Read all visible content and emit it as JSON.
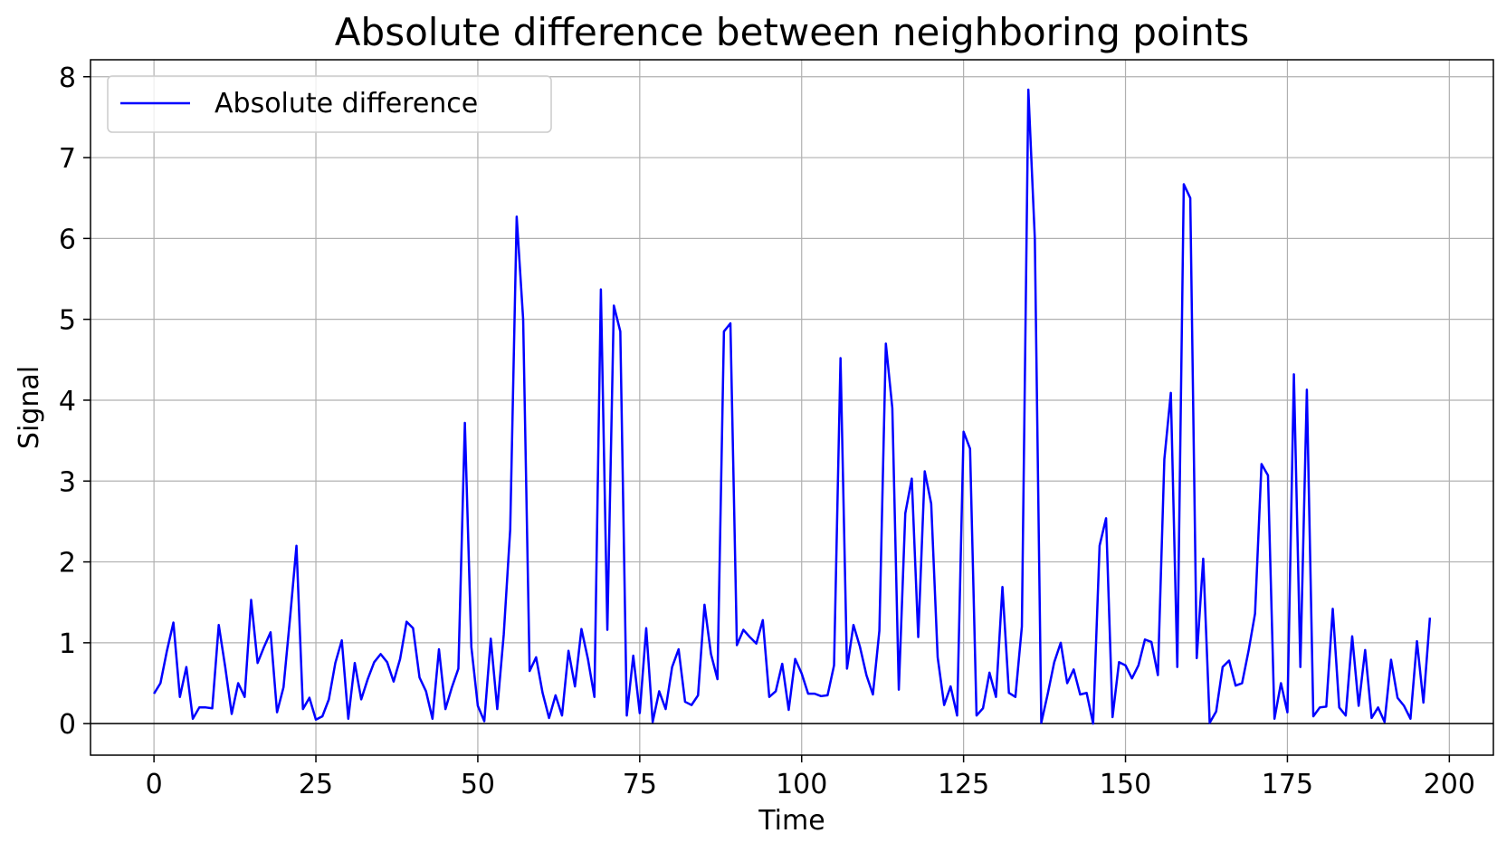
{
  "chart_data": {
    "type": "line",
    "title": "Absolute difference between neighboring points",
    "xlabel": "Time",
    "ylabel": "Signal",
    "xlim": [
      -9.8,
      206.8
    ],
    "ylim": [
      -0.39,
      8.21
    ],
    "xticks": [
      0,
      25,
      50,
      75,
      100,
      125,
      150,
      175,
      200
    ],
    "yticks": [
      0,
      1,
      2,
      3,
      4,
      5,
      6,
      7,
      8
    ],
    "grid": true,
    "legend_position": "top-left",
    "series": [
      {
        "name": "Absolute difference",
        "color": "#0000ff",
        "x_start": 0,
        "x_step": 1,
        "values": [
          0.37,
          0.5,
          0.9,
          1.25,
          0.33,
          0.7,
          0.06,
          0.2,
          0.2,
          0.19,
          1.22,
          0.7,
          0.12,
          0.5,
          0.33,
          1.53,
          0.75,
          0.95,
          1.13,
          0.14,
          0.45,
          1.3,
          2.2,
          0.18,
          0.32,
          0.05,
          0.09,
          0.3,
          0.75,
          1.03,
          0.06,
          0.75,
          0.3,
          0.55,
          0.76,
          0.86,
          0.76,
          0.52,
          0.8,
          1.26,
          1.18,
          0.57,
          0.4,
          0.06,
          0.92,
          0.18,
          0.45,
          0.68,
          3.72,
          0.95,
          0.22,
          0.03,
          1.05,
          0.18,
          1.1,
          2.4,
          6.27,
          5.0,
          0.65,
          0.82,
          0.38,
          0.07,
          0.35,
          0.1,
          0.9,
          0.46,
          1.17,
          0.8,
          0.33,
          5.37,
          1.16,
          5.17,
          4.85,
          0.1,
          0.84,
          0.13,
          1.18,
          0.02,
          0.4,
          0.18,
          0.7,
          0.92,
          0.27,
          0.23,
          0.35,
          1.47,
          0.86,
          0.55,
          4.85,
          4.95,
          0.97,
          1.16,
          1.07,
          0.99,
          1.28,
          0.33,
          0.4,
          0.74,
          0.17,
          0.8,
          0.62,
          0.37,
          0.37,
          0.34,
          0.35,
          0.72,
          4.52,
          0.68,
          1.22,
          0.95,
          0.6,
          0.36,
          1.15,
          4.7,
          3.9,
          0.42,
          2.6,
          3.03,
          1.07,
          3.12,
          2.72,
          0.82,
          0.23,
          0.46,
          0.1,
          3.61,
          3.4,
          0.1,
          0.19,
          0.63,
          0.33,
          1.69,
          0.38,
          0.33,
          1.2,
          7.84,
          6.0,
          0.01,
          0.37,
          0.76,
          1.0,
          0.5,
          0.67,
          0.36,
          0.38,
          0.0,
          2.2,
          2.54,
          0.08,
          0.76,
          0.72,
          0.56,
          0.72,
          1.04,
          1.01,
          0.6,
          3.27,
          4.09,
          0.7,
          6.67,
          6.5,
          0.81,
          2.04,
          0.01,
          0.15,
          0.7,
          0.78,
          0.47,
          0.5,
          0.9,
          1.36,
          3.21,
          3.07,
          0.06,
          0.5,
          0.14,
          4.32,
          0.7,
          4.13,
          0.09,
          0.2,
          0.21,
          1.42,
          0.2,
          0.1,
          1.08,
          0.22,
          0.91,
          0.07,
          0.2,
          0.02,
          0.79,
          0.32,
          0.22,
          0.06,
          1.02,
          0.26,
          1.31
        ]
      }
    ]
  }
}
